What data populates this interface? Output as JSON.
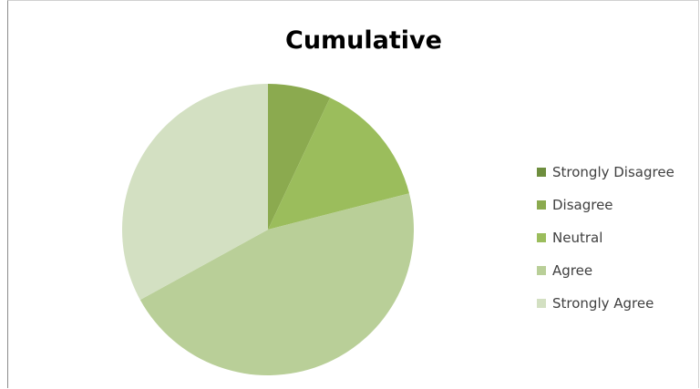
{
  "chart_data": {
    "type": "pie",
    "title": "Cumulative",
    "legend_position": "right",
    "categories": [
      "Strongly Disagree",
      "Disagree",
      "Neutral",
      "Agree",
      "Strongly Agree"
    ],
    "values": [
      0,
      7,
      14,
      46,
      33
    ],
    "colors": [
      "#6E8E3E",
      "#8BAA4F",
      "#9BBD5C",
      "#B9CF98",
      "#D3E0C2"
    ]
  }
}
